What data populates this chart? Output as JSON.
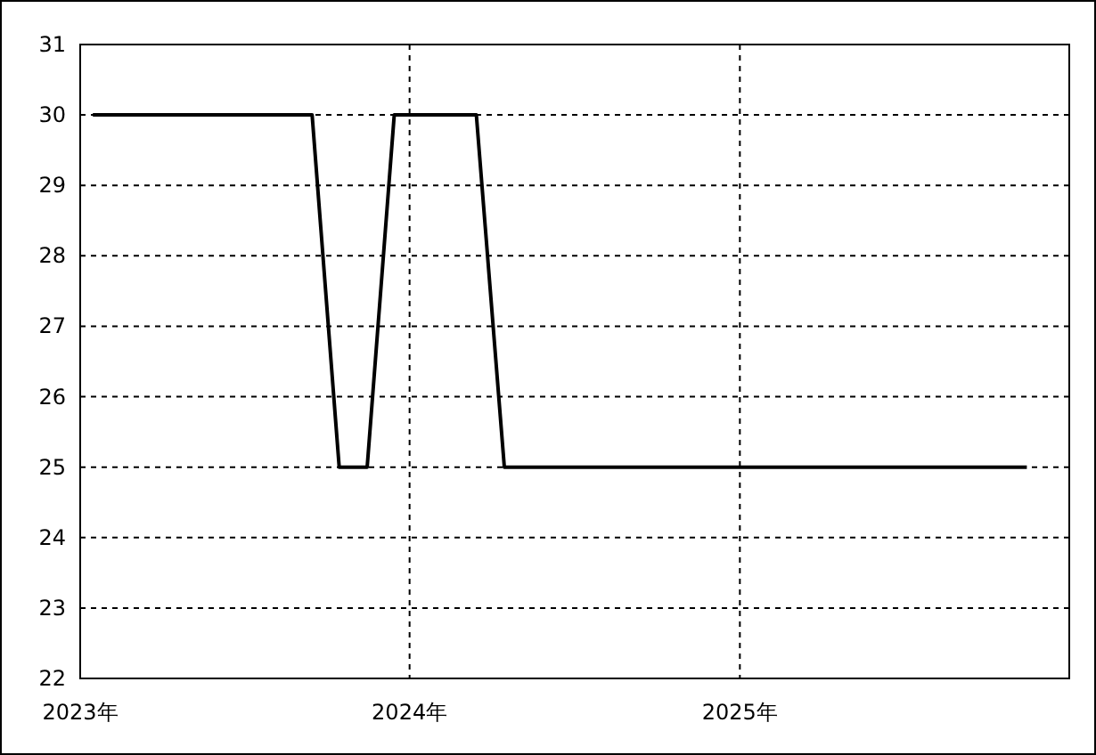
{
  "chart_data": {
    "type": "line",
    "x": [
      "2023-01-15",
      "2023-02-15",
      "2023-03-15",
      "2023-04-15",
      "2023-05-15",
      "2023-06-15",
      "2023-07-15",
      "2023-08-15",
      "2023-09-15",
      "2023-10-15",
      "2023-11-15",
      "2023-12-15",
      "2024-01-15",
      "2024-02-15",
      "2024-03-15",
      "2024-04-15",
      "2024-05-15",
      "2024-06-15",
      "2024-07-15",
      "2024-08-15",
      "2024-09-15",
      "2024-10-15",
      "2024-11-15",
      "2024-12-15",
      "2025-01-15",
      "2025-02-15",
      "2025-03-15",
      "2025-04-15",
      "2025-05-15",
      "2025-06-15",
      "2025-07-15",
      "2025-08-15",
      "2025-09-15",
      "2025-10-15",
      "2025-11-15"
    ],
    "values": [
      30,
      30,
      30,
      30,
      30,
      30,
      30,
      30,
      30,
      25,
      25,
      30,
      30,
      30,
      30,
      25,
      25,
      25,
      25,
      25,
      25,
      25,
      25,
      25,
      25,
      25,
      25,
      25,
      25,
      25,
      25,
      25,
      25,
      25,
      25
    ],
    "color": "#000000",
    "xlim": [
      "2023-01-01",
      "2026-01-01"
    ],
    "xticks": [
      {
        "value": "2023-01-01",
        "label": "2023年"
      },
      {
        "value": "2024-01-01",
        "label": "2024年"
      },
      {
        "value": "2025-01-01",
        "label": "2025年"
      }
    ],
    "ylim": [
      22,
      31
    ],
    "yticks": [
      22,
      23,
      24,
      25,
      26,
      27,
      28,
      29,
      30,
      31
    ],
    "grid": true
  }
}
